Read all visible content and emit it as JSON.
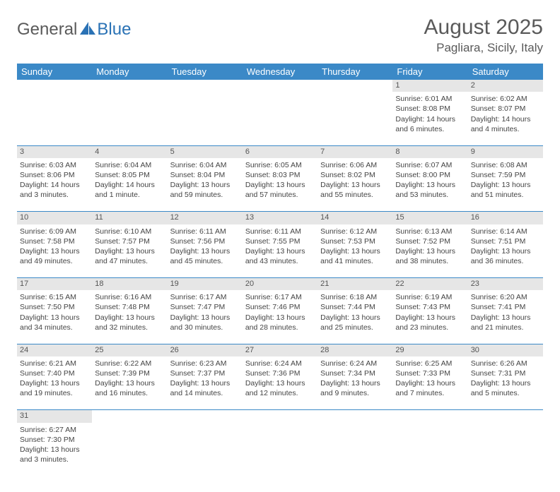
{
  "logo": {
    "part1": "General",
    "part2": "Blue"
  },
  "title": "August 2025",
  "location": "Pagliara, Sicily, Italy",
  "colors": {
    "header_bg": "#3b89c7",
    "header_text": "#ffffff",
    "daynum_bg": "#e6e6e6",
    "border": "#3b89c7",
    "logo_gray": "#5a5a5a",
    "logo_blue": "#2a72b5"
  },
  "weekdays": [
    "Sunday",
    "Monday",
    "Tuesday",
    "Wednesday",
    "Thursday",
    "Friday",
    "Saturday"
  ],
  "weeks": [
    [
      null,
      null,
      null,
      null,
      null,
      {
        "day": "1",
        "sunrise": "Sunrise: 6:01 AM",
        "sunset": "Sunset: 8:08 PM",
        "daylight": "Daylight: 14 hours and 6 minutes."
      },
      {
        "day": "2",
        "sunrise": "Sunrise: 6:02 AM",
        "sunset": "Sunset: 8:07 PM",
        "daylight": "Daylight: 14 hours and 4 minutes."
      }
    ],
    [
      {
        "day": "3",
        "sunrise": "Sunrise: 6:03 AM",
        "sunset": "Sunset: 8:06 PM",
        "daylight": "Daylight: 14 hours and 3 minutes."
      },
      {
        "day": "4",
        "sunrise": "Sunrise: 6:04 AM",
        "sunset": "Sunset: 8:05 PM",
        "daylight": "Daylight: 14 hours and 1 minute."
      },
      {
        "day": "5",
        "sunrise": "Sunrise: 6:04 AM",
        "sunset": "Sunset: 8:04 PM",
        "daylight": "Daylight: 13 hours and 59 minutes."
      },
      {
        "day": "6",
        "sunrise": "Sunrise: 6:05 AM",
        "sunset": "Sunset: 8:03 PM",
        "daylight": "Daylight: 13 hours and 57 minutes."
      },
      {
        "day": "7",
        "sunrise": "Sunrise: 6:06 AM",
        "sunset": "Sunset: 8:02 PM",
        "daylight": "Daylight: 13 hours and 55 minutes."
      },
      {
        "day": "8",
        "sunrise": "Sunrise: 6:07 AM",
        "sunset": "Sunset: 8:00 PM",
        "daylight": "Daylight: 13 hours and 53 minutes."
      },
      {
        "day": "9",
        "sunrise": "Sunrise: 6:08 AM",
        "sunset": "Sunset: 7:59 PM",
        "daylight": "Daylight: 13 hours and 51 minutes."
      }
    ],
    [
      {
        "day": "10",
        "sunrise": "Sunrise: 6:09 AM",
        "sunset": "Sunset: 7:58 PM",
        "daylight": "Daylight: 13 hours and 49 minutes."
      },
      {
        "day": "11",
        "sunrise": "Sunrise: 6:10 AM",
        "sunset": "Sunset: 7:57 PM",
        "daylight": "Daylight: 13 hours and 47 minutes."
      },
      {
        "day": "12",
        "sunrise": "Sunrise: 6:11 AM",
        "sunset": "Sunset: 7:56 PM",
        "daylight": "Daylight: 13 hours and 45 minutes."
      },
      {
        "day": "13",
        "sunrise": "Sunrise: 6:11 AM",
        "sunset": "Sunset: 7:55 PM",
        "daylight": "Daylight: 13 hours and 43 minutes."
      },
      {
        "day": "14",
        "sunrise": "Sunrise: 6:12 AM",
        "sunset": "Sunset: 7:53 PM",
        "daylight": "Daylight: 13 hours and 41 minutes."
      },
      {
        "day": "15",
        "sunrise": "Sunrise: 6:13 AM",
        "sunset": "Sunset: 7:52 PM",
        "daylight": "Daylight: 13 hours and 38 minutes."
      },
      {
        "day": "16",
        "sunrise": "Sunrise: 6:14 AM",
        "sunset": "Sunset: 7:51 PM",
        "daylight": "Daylight: 13 hours and 36 minutes."
      }
    ],
    [
      {
        "day": "17",
        "sunrise": "Sunrise: 6:15 AM",
        "sunset": "Sunset: 7:50 PM",
        "daylight": "Daylight: 13 hours and 34 minutes."
      },
      {
        "day": "18",
        "sunrise": "Sunrise: 6:16 AM",
        "sunset": "Sunset: 7:48 PM",
        "daylight": "Daylight: 13 hours and 32 minutes."
      },
      {
        "day": "19",
        "sunrise": "Sunrise: 6:17 AM",
        "sunset": "Sunset: 7:47 PM",
        "daylight": "Daylight: 13 hours and 30 minutes."
      },
      {
        "day": "20",
        "sunrise": "Sunrise: 6:17 AM",
        "sunset": "Sunset: 7:46 PM",
        "daylight": "Daylight: 13 hours and 28 minutes."
      },
      {
        "day": "21",
        "sunrise": "Sunrise: 6:18 AM",
        "sunset": "Sunset: 7:44 PM",
        "daylight": "Daylight: 13 hours and 25 minutes."
      },
      {
        "day": "22",
        "sunrise": "Sunrise: 6:19 AM",
        "sunset": "Sunset: 7:43 PM",
        "daylight": "Daylight: 13 hours and 23 minutes."
      },
      {
        "day": "23",
        "sunrise": "Sunrise: 6:20 AM",
        "sunset": "Sunset: 7:41 PM",
        "daylight": "Daylight: 13 hours and 21 minutes."
      }
    ],
    [
      {
        "day": "24",
        "sunrise": "Sunrise: 6:21 AM",
        "sunset": "Sunset: 7:40 PM",
        "daylight": "Daylight: 13 hours and 19 minutes."
      },
      {
        "day": "25",
        "sunrise": "Sunrise: 6:22 AM",
        "sunset": "Sunset: 7:39 PM",
        "daylight": "Daylight: 13 hours and 16 minutes."
      },
      {
        "day": "26",
        "sunrise": "Sunrise: 6:23 AM",
        "sunset": "Sunset: 7:37 PM",
        "daylight": "Daylight: 13 hours and 14 minutes."
      },
      {
        "day": "27",
        "sunrise": "Sunrise: 6:24 AM",
        "sunset": "Sunset: 7:36 PM",
        "daylight": "Daylight: 13 hours and 12 minutes."
      },
      {
        "day": "28",
        "sunrise": "Sunrise: 6:24 AM",
        "sunset": "Sunset: 7:34 PM",
        "daylight": "Daylight: 13 hours and 9 minutes."
      },
      {
        "day": "29",
        "sunrise": "Sunrise: 6:25 AM",
        "sunset": "Sunset: 7:33 PM",
        "daylight": "Daylight: 13 hours and 7 minutes."
      },
      {
        "day": "30",
        "sunrise": "Sunrise: 6:26 AM",
        "sunset": "Sunset: 7:31 PM",
        "daylight": "Daylight: 13 hours and 5 minutes."
      }
    ],
    [
      {
        "day": "31",
        "sunrise": "Sunrise: 6:27 AM",
        "sunset": "Sunset: 7:30 PM",
        "daylight": "Daylight: 13 hours and 3 minutes."
      },
      null,
      null,
      null,
      null,
      null,
      null
    ]
  ]
}
